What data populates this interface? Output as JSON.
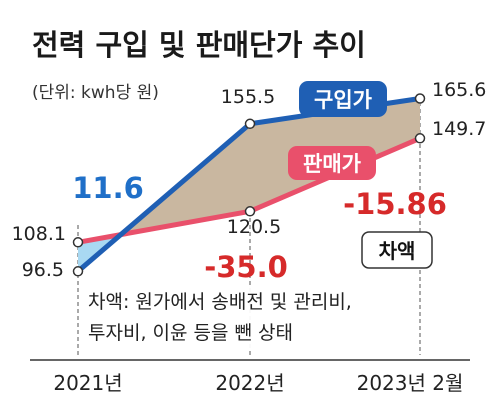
{
  "chart_data": {
    "type": "line",
    "title": "전력 구입 및 판매단가 추이",
    "unit_label": "(단위: kwh당 원)",
    "x_labels": [
      "2021년",
      "2022년",
      "2023년 2월"
    ],
    "ylim": [
      85,
      175
    ],
    "grid": false,
    "series": [
      {
        "name": "구입가",
        "color": "#1f5fb4",
        "values": [
          96.5,
          155.5,
          165.6
        ],
        "value_labels": [
          "96.5",
          "155.5",
          "165.6"
        ]
      },
      {
        "name": "판매가",
        "color": "#e9506b",
        "values": [
          108.1,
          120.5,
          149.7
        ],
        "value_labels": [
          "108.1",
          "120.5",
          "149.7"
        ]
      }
    ],
    "differences": [
      {
        "label": "11.6",
        "color": "#1f6fc8"
      },
      {
        "label": "-35.0",
        "color": "#d62a2a"
      },
      {
        "label": "-15.86",
        "color": "#d62a2a"
      }
    ],
    "diff_badge": "차액",
    "positive_fill": "#a9d9f2",
    "negative_fill": "#c9b7a0",
    "annotation_lines": [
      "차액: 원가에서 송배전 및 관리비,",
      "투자비, 이윤 등을 뺀 상태"
    ]
  }
}
